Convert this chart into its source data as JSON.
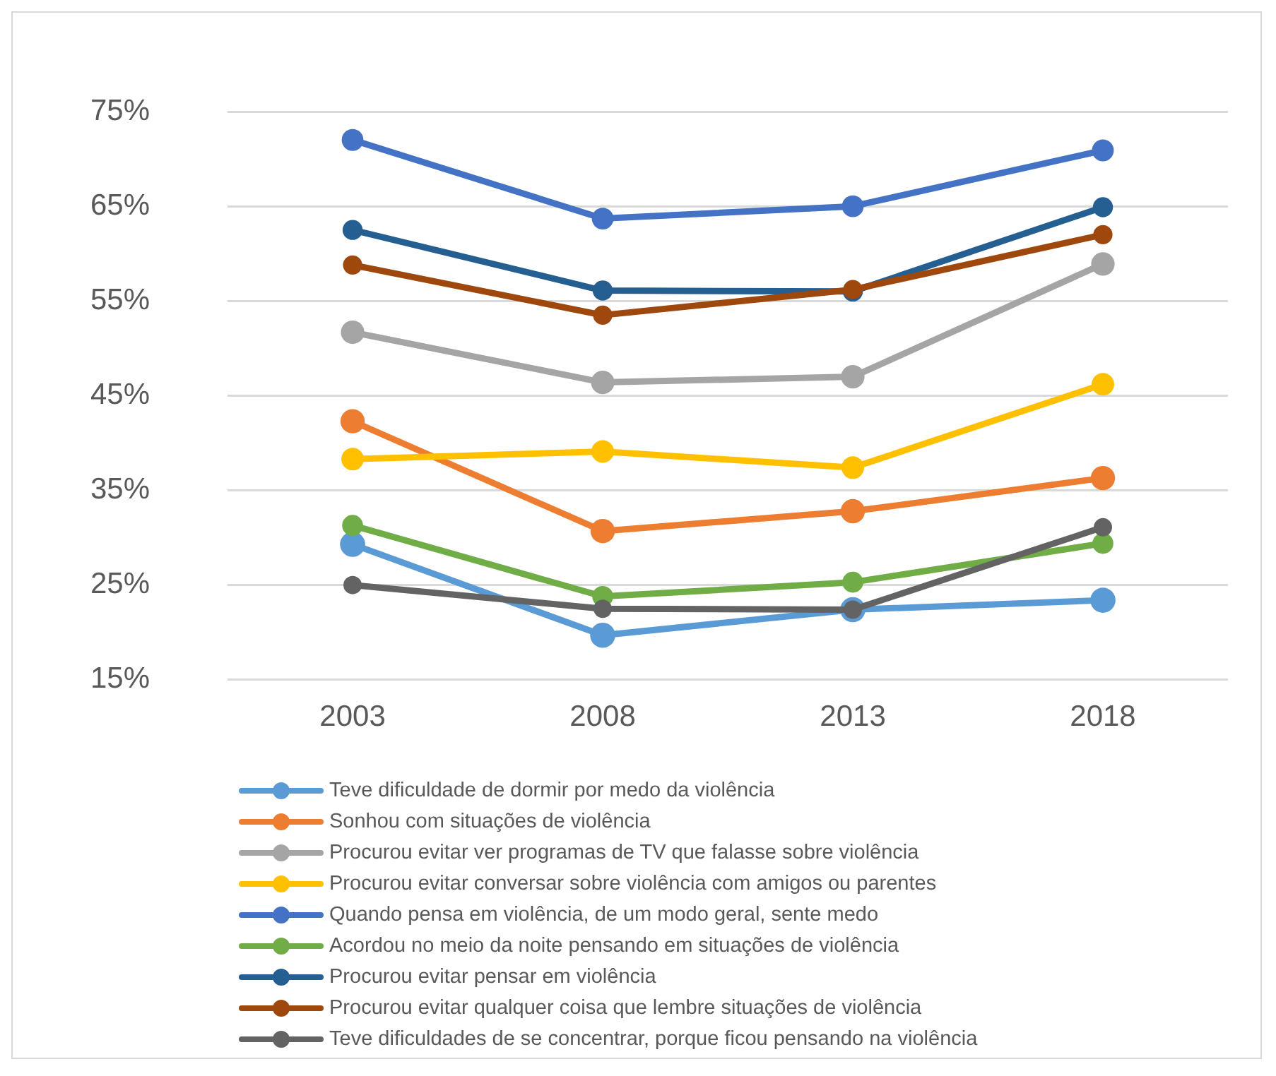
{
  "chart_data": {
    "type": "line",
    "categories": [
      "2003",
      "2008",
      "2013",
      "2018"
    ],
    "ylim": [
      15,
      75
    ],
    "yticks": [
      {
        "value": 15,
        "label": "15%"
      },
      {
        "value": 25,
        "label": "25%"
      },
      {
        "value": 35,
        "label": "35%"
      },
      {
        "value": 45,
        "label": "45%"
      },
      {
        "value": 55,
        "label": "55%"
      },
      {
        "value": 65,
        "label": "65%"
      },
      {
        "value": 75,
        "label": "75%"
      }
    ],
    "grid": "y",
    "legend": "bottom",
    "marker": "circle",
    "line_style": "solid",
    "series": [
      {
        "name": "Teve dificuldade de dormir por medo da violência",
        "color": "#5b9bd5",
        "values": [
          29.3,
          19.7,
          22.4,
          23.4
        ]
      },
      {
        "name": "Sonhou com situações de violência",
        "color": "#ed7d31",
        "values": [
          42.3,
          30.7,
          32.8,
          36.3
        ]
      },
      {
        "name": "Procurou evitar ver programas de TV que falasse sobre violência",
        "color": "#a5a5a5",
        "values": [
          51.7,
          46.4,
          47.0,
          58.9
        ]
      },
      {
        "name": "Procurou evitar conversar sobre violência com amigos ou parentes",
        "color": "#ffc000",
        "values": [
          38.3,
          39.1,
          37.4,
          46.2
        ]
      },
      {
        "name": "Quando pensa em violência, de um modo geral, sente medo",
        "color": "#4472c4",
        "values": [
          72.0,
          63.7,
          65.0,
          70.9
        ]
      },
      {
        "name": "Acordou no meio da noite pensando em situações de violência",
        "color": "#70ad47",
        "values": [
          31.3,
          23.8,
          25.3,
          29.4
        ]
      },
      {
        "name": "Procurou evitar pensar em violência",
        "color": "#255e91",
        "values": [
          62.5,
          56.1,
          56.0,
          64.9
        ]
      },
      {
        "name": "Procurou evitar qualquer coisa que lembre situações de violência",
        "color": "#9e480e",
        "values": [
          58.8,
          53.5,
          56.2,
          62.0
        ]
      },
      {
        "name": "Teve dificuldades de se concentrar, porque ficou pensando na violência",
        "color": "#636363",
        "values": [
          25.0,
          22.5,
          22.4,
          31.1
        ]
      }
    ]
  }
}
